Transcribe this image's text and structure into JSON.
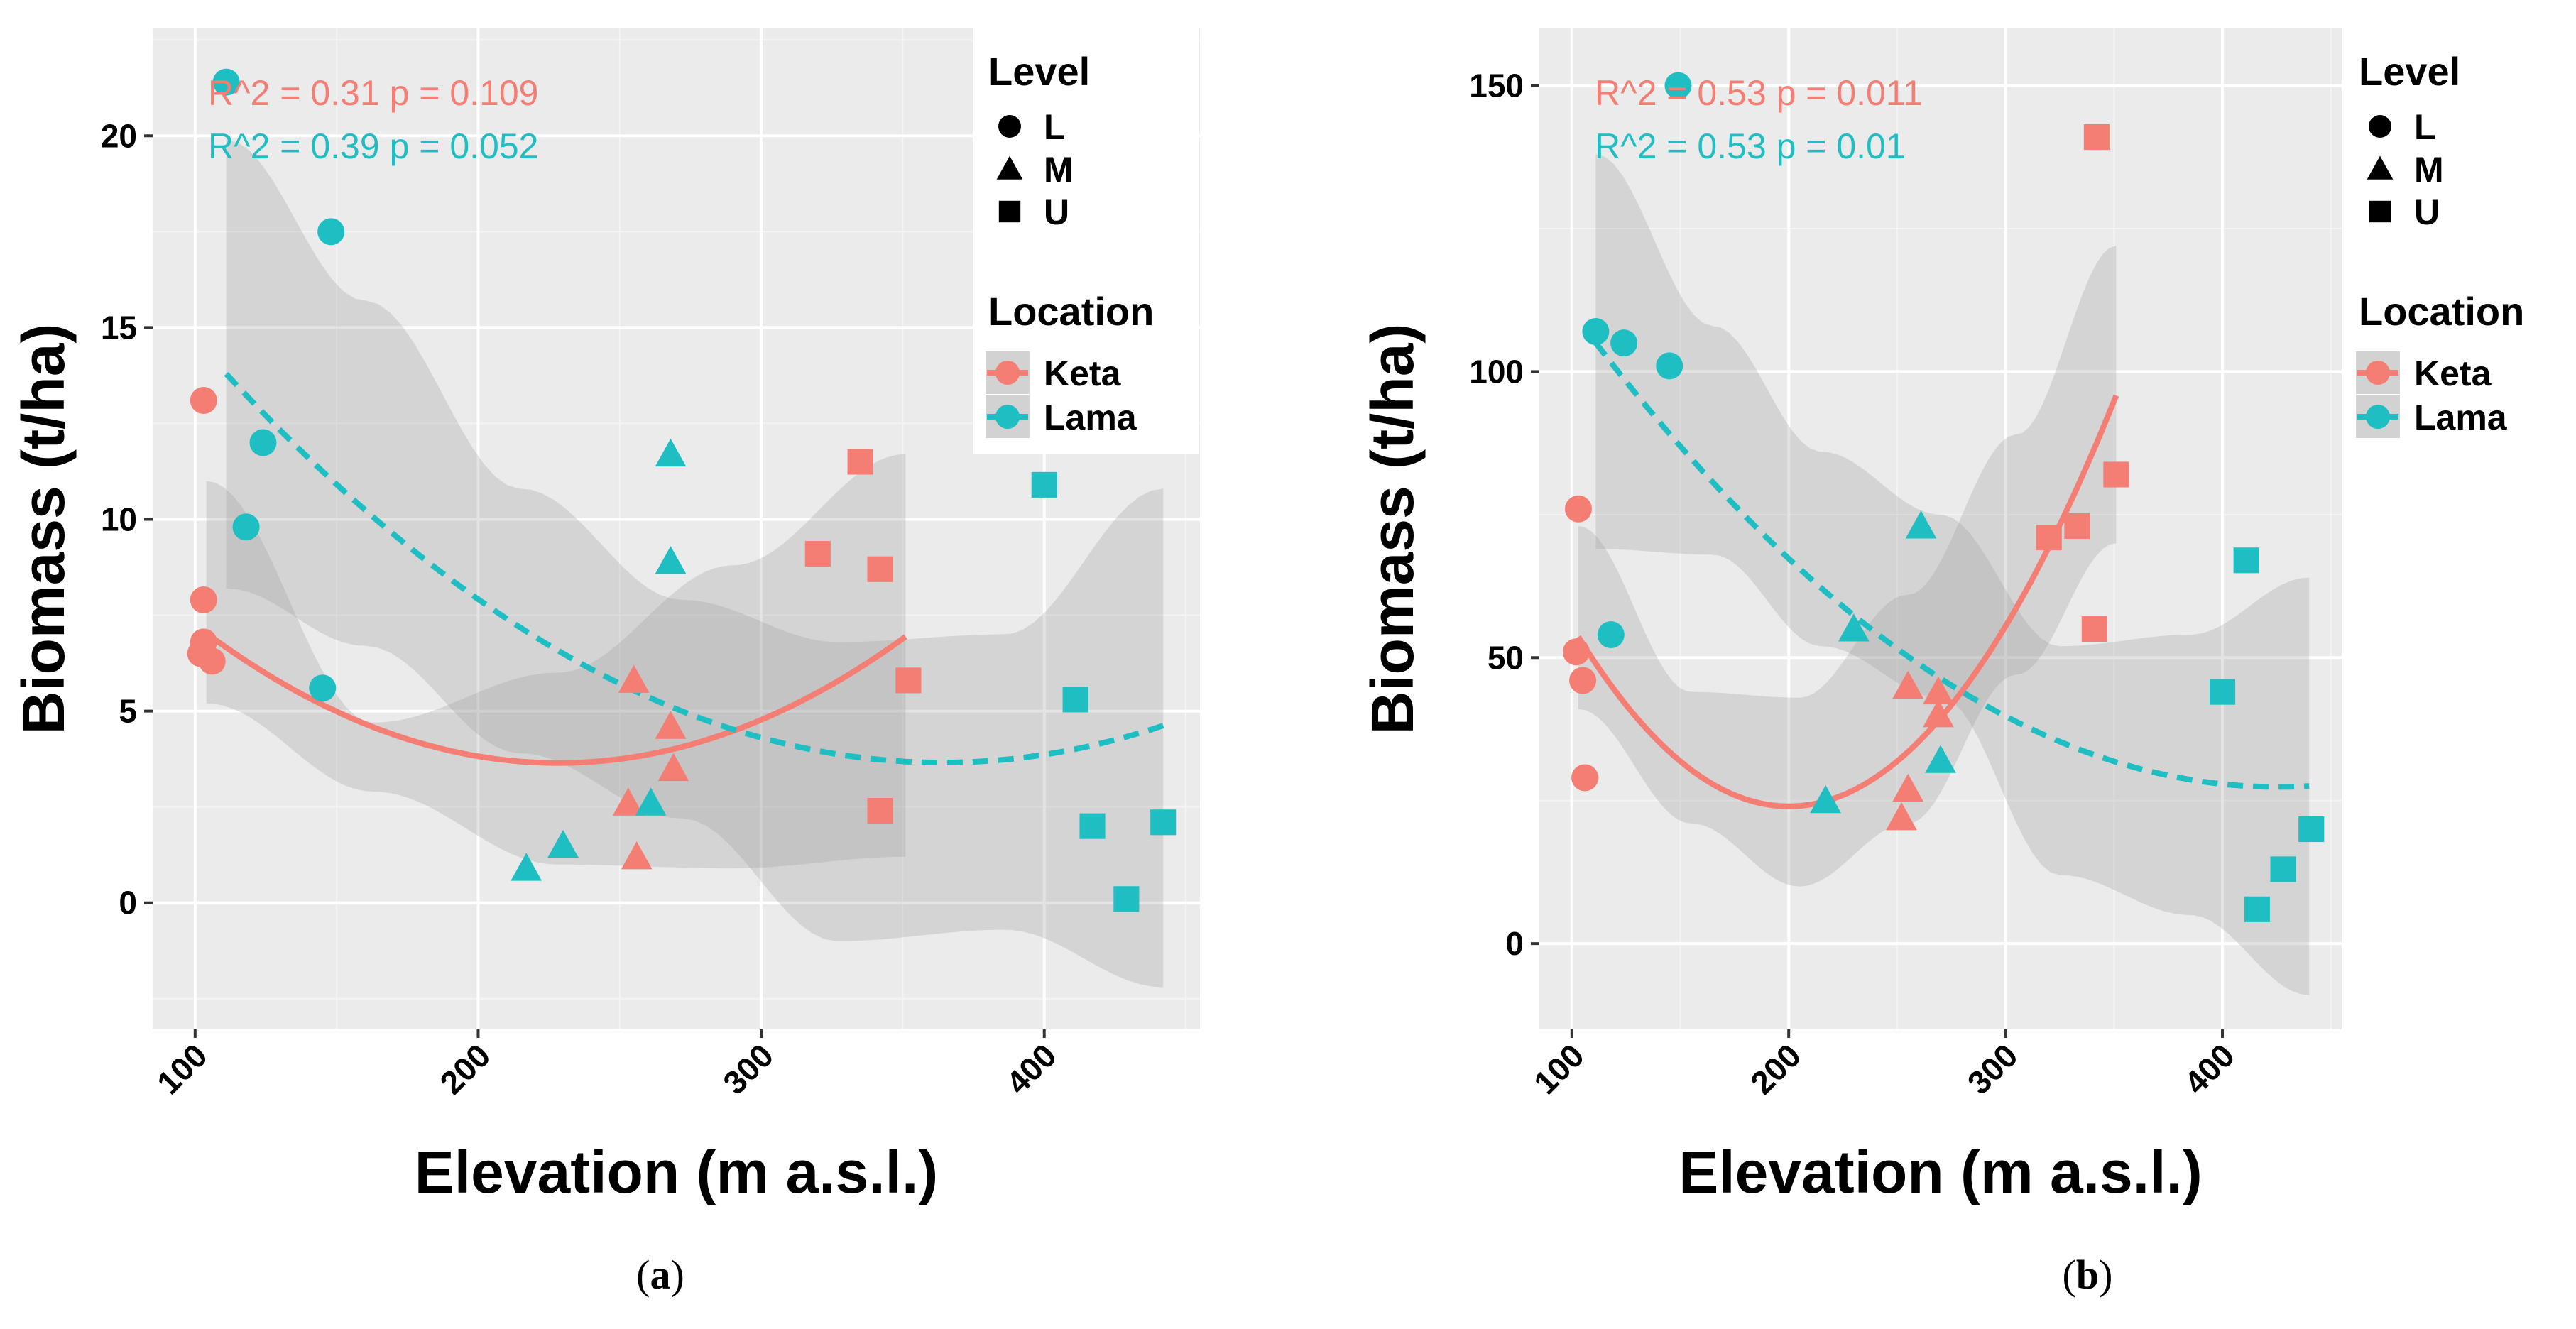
{
  "colors": {
    "keta": "#F47D74",
    "lama": "#1FBEC3",
    "panel_bg": "#EBEBEB",
    "grid_major": "#FFFFFF",
    "grid_minor": "#F4F4F4",
    "ribbon": "#999999"
  },
  "legend": {
    "level_title": "Level",
    "level_items": [
      {
        "label": "L",
        "shape": "circle"
      },
      {
        "label": "M",
        "shape": "triangle"
      },
      {
        "label": "U",
        "shape": "square"
      }
    ],
    "location_title": "Location",
    "location_items": [
      {
        "label": "Keta",
        "color": "keta",
        "line": "solid"
      },
      {
        "label": "Lama",
        "color": "lama",
        "line": "dashed"
      }
    ]
  },
  "chart_data": [
    {
      "id": "a",
      "type": "scatter",
      "caption": {
        "open": "(",
        "letter": "a",
        "close": ")"
      },
      "xlabel": "Elevation (m a.s.l.)",
      "ylabel": "Biomass (t/ha)",
      "xlim": [
        85,
        455
      ],
      "ylim": [
        -3.3,
        22.8
      ],
      "xticks": [
        100,
        200,
        300,
        400
      ],
      "yticks": [
        0,
        5,
        10,
        15,
        20
      ],
      "stats": [
        {
          "series": "Keta",
          "text": "R^2 = 0.31  p =  0.109"
        },
        {
          "series": "Lama",
          "text": "R^2 = 0.39  p =  0.052"
        }
      ],
      "series": [
        {
          "name": "Keta",
          "points": [
            {
              "x": 103,
              "y": 13.1,
              "level": "L"
            },
            {
              "x": 103,
              "y": 7.9,
              "level": "L"
            },
            {
              "x": 103,
              "y": 6.8,
              "level": "L"
            },
            {
              "x": 102,
              "y": 6.5,
              "level": "L"
            },
            {
              "x": 106,
              "y": 6.3,
              "level": "L"
            },
            {
              "x": 255,
              "y": 5.8,
              "level": "M"
            },
            {
              "x": 268,
              "y": 4.6,
              "level": "M"
            },
            {
              "x": 269,
              "y": 3.5,
              "level": "M"
            },
            {
              "x": 253,
              "y": 2.6,
              "level": "M"
            },
            {
              "x": 256,
              "y": 1.2,
              "level": "M"
            },
            {
              "x": 335,
              "y": 11.5,
              "level": "U"
            },
            {
              "x": 320,
              "y": 9.1,
              "level": "U"
            },
            {
              "x": 342,
              "y": 8.7,
              "level": "U"
            },
            {
              "x": 352,
              "y": 5.8,
              "level": "U"
            },
            {
              "x": 342,
              "y": 2.4,
              "level": "U"
            }
          ],
          "fit": {
            "x": [
              104,
              351
            ],
            "coef": [
              15.05,
              -0.0999,
              0.0002188
            ]
          },
          "band": {
            "x": [
              104,
              163,
              228,
              290,
              351
            ],
            "lower": [
              5.2,
              2.9,
              1.0,
              0.9,
              1.2
            ],
            "upper": [
              11.0,
              4.7,
              6.0,
              8.8,
              11.7
            ]
          }
        },
        {
          "name": "Lama",
          "points": [
            {
              "x": 111,
              "y": 21.4,
              "level": "L"
            },
            {
              "x": 148,
              "y": 17.5,
              "level": "L"
            },
            {
              "x": 124,
              "y": 12.0,
              "level": "L"
            },
            {
              "x": 118,
              "y": 9.8,
              "level": "L"
            },
            {
              "x": 145,
              "y": 5.6,
              "level": "L"
            },
            {
              "x": 268,
              "y": 11.7,
              "level": "M"
            },
            {
              "x": 268,
              "y": 8.9,
              "level": "M"
            },
            {
              "x": 261,
              "y": 2.6,
              "level": "M"
            },
            {
              "x": 230,
              "y": 1.5,
              "level": "M"
            },
            {
              "x": 217,
              "y": 0.9,
              "level": "M"
            },
            {
              "x": 400,
              "y": 10.9,
              "level": "U"
            },
            {
              "x": 411,
              "y": 5.3,
              "level": "U"
            },
            {
              "x": 442,
              "y": 2.1,
              "level": "U"
            },
            {
              "x": 417,
              "y": 2.0,
              "level": "U"
            },
            {
              "x": 429,
              "y": 0.1,
              "level": "U"
            }
          ],
          "fit": {
            "x": [
              111,
              442
            ],
            "coef": [
              24.64,
              -0.1153,
              0.0001584
            ]
          },
          "band": {
            "x": [
              111,
              160,
              215,
              272,
              327,
              386,
              442
            ],
            "lower": [
              8.2,
              6.7,
              3.9,
              2.2,
              -1.0,
              -0.7,
              -2.2
            ],
            "upper": [
              19.9,
              15.7,
              10.8,
              7.9,
              6.8,
              7.0,
              10.8
            ]
          }
        }
      ]
    },
    {
      "id": "b",
      "type": "scatter",
      "caption": {
        "open": "(",
        "letter": "b",
        "close": ")"
      },
      "xlabel": "Elevation (m a.s.l.)",
      "ylabel": "Biomass (t/ha)",
      "xlim": [
        85,
        455
      ],
      "ylim": [
        -15,
        160
      ],
      "xticks": [
        100,
        200,
        300,
        400
      ],
      "yticks": [
        0,
        50,
        100,
        150
      ],
      "stats": [
        {
          "series": "Keta",
          "text": "R^2 = 0.53  p =  0.011"
        },
        {
          "series": "Lama",
          "text": "R^2 = 0.53  p =  0.01"
        }
      ],
      "series": [
        {
          "name": "Keta",
          "points": [
            {
              "x": 103,
              "y": 76,
              "level": "L"
            },
            {
              "x": 102,
              "y": 51,
              "level": "L"
            },
            {
              "x": 105,
              "y": 46,
              "level": "L"
            },
            {
              "x": 106,
              "y": 29,
              "level": "L"
            },
            {
              "x": 269,
              "y": 44,
              "level": "M"
            },
            {
              "x": 255,
              "y": 45,
              "level": "M"
            },
            {
              "x": 269,
              "y": 40,
              "level": "M"
            },
            {
              "x": 255,
              "y": 27,
              "level": "M"
            },
            {
              "x": 252,
              "y": 22,
              "level": "M"
            },
            {
              "x": 342,
              "y": 141,
              "level": "U"
            },
            {
              "x": 351,
              "y": 82,
              "level": "U"
            },
            {
              "x": 333,
              "y": 73,
              "level": "U"
            },
            {
              "x": 320,
              "y": 71,
              "level": "U"
            },
            {
              "x": 341,
              "y": 55,
              "level": "U"
            }
          ],
          "fit": {
            "x": [
              103,
              351
            ],
            "coef": [
              150.0,
              -1.26,
              0.00315
            ]
          },
          "band": {
            "x": [
              103,
              155,
              205,
              255,
              305,
              351
            ],
            "lower": [
              41,
              21,
              10,
              21,
              47,
              70
            ],
            "upper": [
              73,
              44,
              43,
              61,
              89,
              122
            ]
          }
        },
        {
          "name": "Lama",
          "points": [
            {
              "x": 149,
              "y": 150,
              "level": "L"
            },
            {
              "x": 111,
              "y": 107,
              "level": "L"
            },
            {
              "x": 124,
              "y": 105,
              "level": "L"
            },
            {
              "x": 145,
              "y": 101,
              "level": "L"
            },
            {
              "x": 118,
              "y": 54,
              "level": "L"
            },
            {
              "x": 261,
              "y": 73,
              "level": "M"
            },
            {
              "x": 230,
              "y": 55,
              "level": "M"
            },
            {
              "x": 270,
              "y": 32,
              "level": "M"
            },
            {
              "x": 217,
              "y": 25,
              "level": "M"
            },
            {
              "x": 411,
              "y": 67,
              "level": "U"
            },
            {
              "x": 400,
              "y": 44,
              "level": "U"
            },
            {
              "x": 441,
              "y": 20,
              "level": "U"
            },
            {
              "x": 428,
              "y": 13,
              "level": "U"
            },
            {
              "x": 416,
              "y": 6,
              "level": "U"
            }
          ],
          "fit": {
            "x": [
              111,
              440
            ],
            "coef": [
              169.5,
              -0.668,
              0.000785
            ]
          },
          "band": {
            "x": [
              111,
              165,
              215,
              270,
              325,
              385,
              440
            ],
            "lower": [
              69,
              68,
              52,
              43,
              12,
              5,
              -9
            ],
            "upper": [
              138,
              108,
              86,
              75,
              52,
              54,
              64
            ]
          }
        }
      ]
    }
  ]
}
